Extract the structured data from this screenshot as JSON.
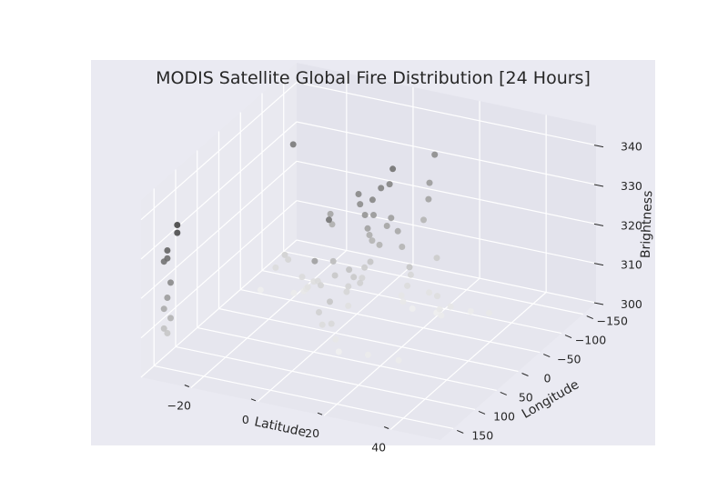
{
  "chart_data": {
    "type": "scatter3d",
    "title": "MODIS Satellite Global Fire Distribution [24 Hours]",
    "xlabel": "Latitude",
    "ylabel": "Longitude",
    "zlabel": "Brightness",
    "x_ticks": [
      -20,
      0,
      20,
      40
    ],
    "y_ticks": [
      -150,
      -100,
      -50,
      0,
      50,
      100,
      150
    ],
    "z_ticks": [
      300,
      310,
      320,
      330,
      340
    ],
    "xlim": [
      -35,
      55
    ],
    "ylim": [
      -180,
      180
    ],
    "zlim": [
      300,
      345
    ],
    "grid": true,
    "colormap": "greys",
    "points": [
      {
        "lat": 13,
        "lon": -130,
        "brightness": 335
      },
      {
        "lat": 13,
        "lon": -118,
        "brightness": 329
      },
      {
        "lat": 14,
        "lon": -108,
        "brightness": 326
      },
      {
        "lat": 12,
        "lon": -112,
        "brightness": 320
      },
      {
        "lat": 17,
        "lon": -104,
        "brightness": 312
      },
      {
        "lat": 9,
        "lon": -84,
        "brightness": 303
      },
      {
        "lat": 11,
        "lon": -82,
        "brightness": 306
      },
      {
        "lat": 10,
        "lon": -80,
        "brightness": 302
      },
      {
        "lat": 12,
        "lon": -86,
        "brightness": 300
      },
      {
        "lat": 11,
        "lon": -90,
        "brightness": 308
      },
      {
        "lat": 16,
        "lon": -94,
        "brightness": 304
      },
      {
        "lat": 19,
        "lon": -88,
        "brightness": 300
      },
      {
        "lat": 21,
        "lon": -80,
        "brightness": 302
      },
      {
        "lat": 20,
        "lon": -82,
        "brightness": 305
      },
      {
        "lat": 22,
        "lon": -76,
        "brightness": 301
      },
      {
        "lat": 24,
        "lon": -82,
        "brightness": 303
      },
      {
        "lat": 28,
        "lon": -98,
        "brightness": 301
      },
      {
        "lat": 34,
        "lon": -94,
        "brightness": 302
      },
      {
        "lat": 4,
        "lon": -38,
        "brightness": 327
      },
      {
        "lat": 4,
        "lon": -44,
        "brightness": 323
      },
      {
        "lat": 6,
        "lon": -40,
        "brightness": 331
      },
      {
        "lat": 2,
        "lon": -42,
        "brightness": 329
      },
      {
        "lat": 5,
        "lon": -50,
        "brightness": 326
      },
      {
        "lat": 7,
        "lon": -52,
        "brightness": 333
      },
      {
        "lat": 1,
        "lon": -46,
        "brightness": 331
      },
      {
        "lat": 3,
        "lon": -56,
        "brightness": 320
      },
      {
        "lat": 8,
        "lon": -58,
        "brightness": 323
      },
      {
        "lat": 6,
        "lon": -56,
        "brightness": 318
      },
      {
        "lat": 3,
        "lon": -62,
        "brightness": 318
      },
      {
        "lat": 9,
        "lon": -60,
        "brightness": 325
      },
      {
        "lat": 12,
        "lon": -62,
        "brightness": 318
      },
      {
        "lat": 11,
        "lon": -60,
        "brightness": 322
      },
      {
        "lat": 14,
        "lon": -64,
        "brightness": 313
      },
      {
        "lat": 10,
        "lon": -56,
        "brightness": 338
      },
      {
        "lat": 8,
        "lon": -64,
        "brightness": 333
      },
      {
        "lat": -8,
        "lon": -28,
        "brightness": 308
      },
      {
        "lat": -4,
        "lon": -26,
        "brightness": 315
      },
      {
        "lat": 0,
        "lon": -32,
        "brightness": 313
      },
      {
        "lat": -4,
        "lon": -30,
        "brightness": 311
      },
      {
        "lat": -1,
        "lon": -34,
        "brightness": 307
      },
      {
        "lat": 0,
        "lon": -30,
        "brightness": 304
      },
      {
        "lat": 2,
        "lon": -42,
        "brightness": 309
      },
      {
        "lat": -1,
        "lon": -38,
        "brightness": 308
      },
      {
        "lat": 1,
        "lon": -35,
        "brightness": 311
      },
      {
        "lat": 1,
        "lon": -60,
        "brightness": 311
      },
      {
        "lat": 3,
        "lon": -58,
        "brightness": 313
      },
      {
        "lat": 0,
        "lon": -62,
        "brightness": 308
      },
      {
        "lat": -9,
        "lon": -58,
        "brightness": 323
      },
      {
        "lat": -9,
        "lon": -62,
        "brightness": 320
      },
      {
        "lat": -22,
        "lon": -72,
        "brightness": 337
      },
      {
        "lat": -24,
        "lon": -68,
        "brightness": 309
      },
      {
        "lat": -23,
        "lon": -68,
        "brightness": 308
      },
      {
        "lat": -26,
        "lon": -62,
        "brightness": 306
      },
      {
        "lat": -30,
        "lon": -58,
        "brightness": 300
      },
      {
        "lat": -20,
        "lon": -58,
        "brightness": 301
      },
      {
        "lat": -17,
        "lon": -58,
        "brightness": 302
      },
      {
        "lat": -16,
        "lon": -56,
        "brightness": 303
      },
      {
        "lat": -14,
        "lon": -58,
        "brightness": 305
      },
      {
        "lat": -15,
        "lon": -52,
        "brightness": 304
      },
      {
        "lat": -17,
        "lon": -54,
        "brightness": 306
      },
      {
        "lat": -12,
        "lon": -52,
        "brightness": 306
      },
      {
        "lat": 2,
        "lon": 30,
        "brightness": 332
      },
      {
        "lat": -2,
        "lon": 32,
        "brightness": 321
      },
      {
        "lat": 2,
        "lon": 28,
        "brightness": 311
      },
      {
        "lat": -1,
        "lon": 30,
        "brightness": 308
      },
      {
        "lat": 3,
        "lon": 32,
        "brightness": 306
      },
      {
        "lat": 0,
        "lon": 30,
        "brightness": 305
      },
      {
        "lat": 4,
        "lon": 30,
        "brightness": 302
      },
      {
        "lat": 6,
        "lon": 38,
        "brightness": 300
      },
      {
        "lat": 15,
        "lon": 40,
        "brightness": 301
      },
      {
        "lat": 24,
        "lon": 38,
        "brightness": 301
      },
      {
        "lat": -28,
        "lon": 150,
        "brightness": 337
      },
      {
        "lat": -28,
        "lon": 150,
        "brightness": 335
      },
      {
        "lat": -31,
        "lon": 150,
        "brightness": 330
      },
      {
        "lat": -31,
        "lon": 150,
        "brightness": 328
      },
      {
        "lat": -32,
        "lon": 150,
        "brightness": 327
      },
      {
        "lat": -30,
        "lon": 150,
        "brightness": 322
      },
      {
        "lat": -31,
        "lon": 150,
        "brightness": 318
      },
      {
        "lat": -32,
        "lon": 150,
        "brightness": 315
      },
      {
        "lat": -30,
        "lon": 150,
        "brightness": 313
      },
      {
        "lat": -32,
        "lon": 150,
        "brightness": 310
      },
      {
        "lat": -31,
        "lon": 150,
        "brightness": 309
      }
    ]
  }
}
